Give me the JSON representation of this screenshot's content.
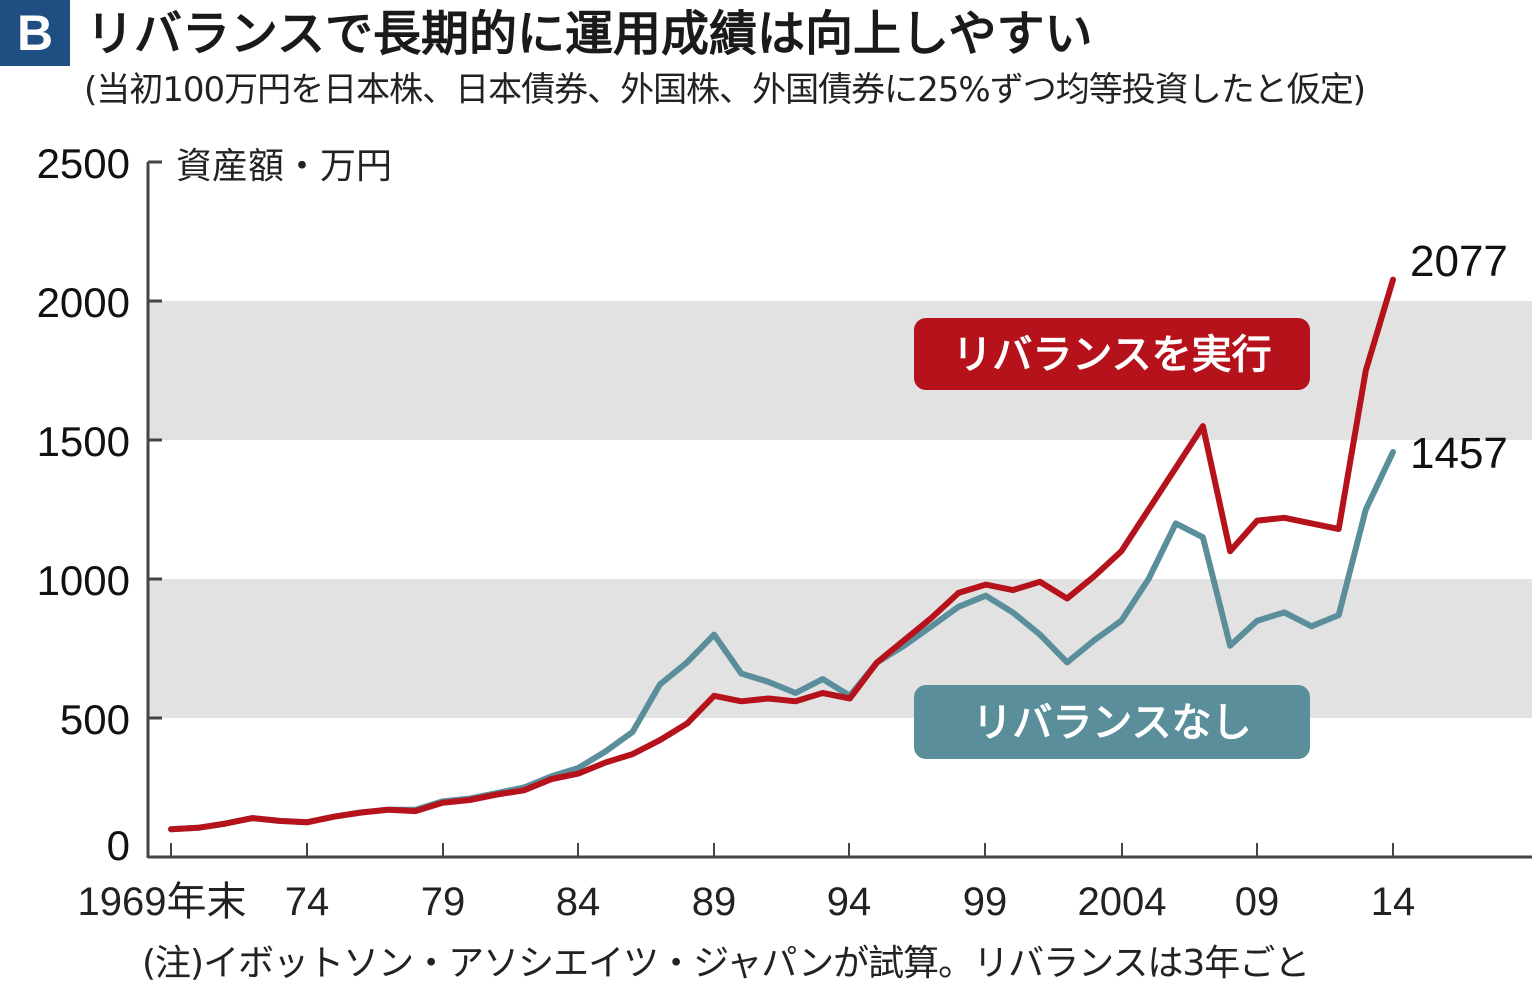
{
  "header": {
    "badge": "B",
    "title": "リバランスで長期的に運用成績は向上しやすい",
    "subtitle": "(当初100万円を日本株、日本債券、外国株、外国債券に25%ずつ均等投資したと仮定)"
  },
  "footer": {
    "note": "(注)イボットソン・アソシエイツ・ジャパンが試算。リバランスは3年ごと"
  },
  "colors": {
    "badge": "#1f4f82",
    "rebalance_line": "#b5121b",
    "no_rebalance_line": "#5a8e9b",
    "band": "#e2e2e2",
    "axis": "#444444"
  },
  "chart_data": {
    "type": "line",
    "title": "リバランスで長期的に運用成績は向上しやすい",
    "subtitle": "(当初100万円を日本株、日本債券、外国株、外国債券に25%ずつ均等投資したと仮定)",
    "xlabel": "",
    "ylabel": "資産額・万円",
    "ylim": [
      0,
      2500
    ],
    "yticks": [
      0,
      500,
      1000,
      1500,
      2000,
      2500
    ],
    "xticks": [
      "1969年末",
      "74",
      "79",
      "84",
      "89",
      "94",
      "99",
      "2004",
      "09",
      "14"
    ],
    "grid": "alternating horizontal bands (500-1000, 1500-2000)",
    "legend_position": "inline labels in chart",
    "x": [
      1969,
      1970,
      1971,
      1972,
      1973,
      1974,
      1975,
      1976,
      1977,
      1978,
      1979,
      1980,
      1981,
      1982,
      1983,
      1984,
      1985,
      1986,
      1987,
      1988,
      1989,
      1990,
      1991,
      1992,
      1993,
      1994,
      1995,
      1996,
      1997,
      1998,
      1999,
      2000,
      2001,
      2002,
      2003,
      2004,
      2005,
      2006,
      2007,
      2008,
      2009,
      2010,
      2011,
      2012,
      2013,
      2014
    ],
    "series": [
      {
        "name": "リバランスを実行",
        "color": "#b5121b",
        "end_label": "2077",
        "values": [
          100,
          105,
          120,
          140,
          130,
          125,
          145,
          160,
          170,
          165,
          195,
          205,
          225,
          240,
          280,
          300,
          340,
          370,
          420,
          480,
          580,
          560,
          570,
          560,
          590,
          570,
          700,
          780,
          860,
          950,
          980,
          960,
          990,
          930,
          1010,
          1100,
          1250,
          1400,
          1550,
          1100,
          1210,
          1220,
          1200,
          1180,
          1750,
          2077
        ]
      },
      {
        "name": "リバランスなし",
        "color": "#5a8e9b",
        "end_label": "1457",
        "values": [
          100,
          105,
          120,
          140,
          130,
          125,
          145,
          160,
          170,
          170,
          200,
          210,
          230,
          250,
          290,
          320,
          380,
          450,
          620,
          700,
          800,
          660,
          630,
          590,
          640,
          580,
          700,
          760,
          830,
          900,
          940,
          880,
          800,
          700,
          780,
          850,
          1000,
          1200,
          1150,
          760,
          850,
          880,
          830,
          870,
          1250,
          1457
        ]
      }
    ]
  },
  "axis": {
    "y_unit": "資産額・万円",
    "y_ticks": [
      "2500",
      "2000",
      "1500",
      "1000",
      "500",
      "0"
    ],
    "x_ticks": [
      "1969年末",
      "74",
      "79",
      "84",
      "89",
      "94",
      "99",
      "2004",
      "09",
      "14"
    ]
  },
  "legend": {
    "rebalance": "リバランスを実行",
    "no_rebalance": "リバランスなし"
  },
  "end_labels": {
    "rebalance": "2077",
    "no_rebalance": "1457"
  }
}
